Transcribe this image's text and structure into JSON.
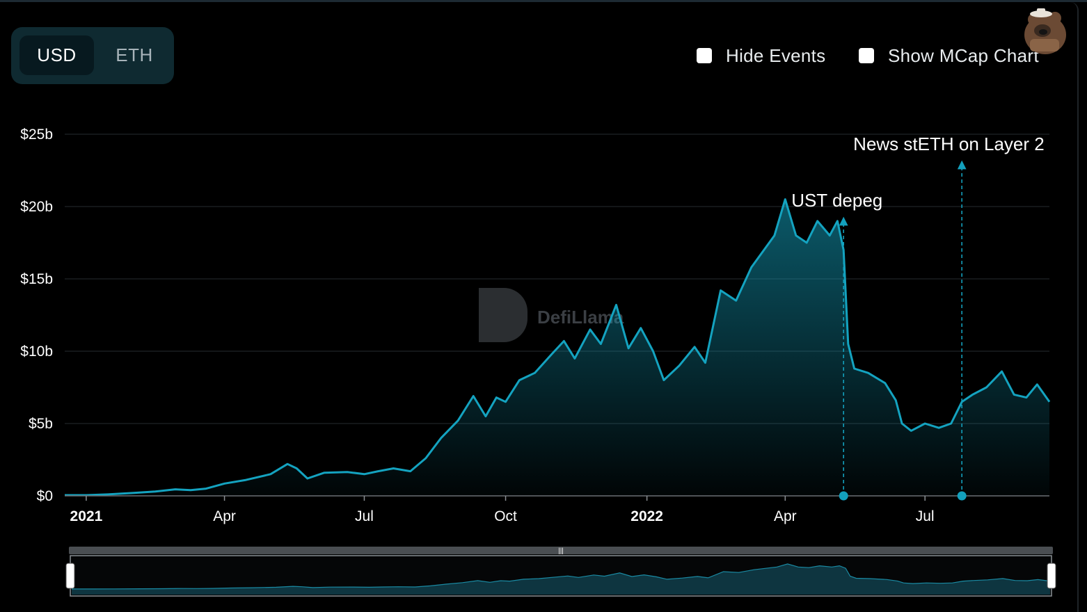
{
  "currency_toggle": {
    "options": [
      "USD",
      "ETH"
    ],
    "selected": "USD"
  },
  "controls": {
    "hide_events_label": "Hide Events",
    "show_mcap_label": "Show MCap Chart"
  },
  "watermark": "DefiLlama",
  "colors": {
    "line": "#14a3c0",
    "grid": "#1f2326",
    "event": "#13a0bd",
    "background": "#000000"
  },
  "events": [
    {
      "label": "UST depeg",
      "date": "2022-05-09"
    },
    {
      "label": "News stETH on Layer 2",
      "date": "2022-07-25"
    }
  ],
  "chart_data": {
    "type": "area",
    "title": "",
    "xlabel": "",
    "ylabel": "",
    "ylim": [
      0,
      25
    ],
    "y_unit": "USD billions",
    "yticks": [
      "$0",
      "$5b",
      "$10b",
      "$15b",
      "$20b",
      "$25b"
    ],
    "xticks": [
      {
        "label": "2021",
        "date": "2021-01-01",
        "bold": true
      },
      {
        "label": "Apr",
        "date": "2021-04-01",
        "bold": false
      },
      {
        "label": "Jul",
        "date": "2021-07-01",
        "bold": false
      },
      {
        "label": "Oct",
        "date": "2021-10-01",
        "bold": false
      },
      {
        "label": "2022",
        "date": "2022-01-01",
        "bold": true
      },
      {
        "label": "Apr",
        "date": "2022-04-01",
        "bold": false
      },
      {
        "label": "Jul",
        "date": "2022-07-01",
        "bold": false
      }
    ],
    "xlim": [
      "2020-12-18",
      "2022-09-20"
    ],
    "grid": true,
    "series": [
      {
        "points": [
          [
            "2020-12-18",
            0.05
          ],
          [
            "2021-01-01",
            0.05
          ],
          [
            "2021-01-15",
            0.1
          ],
          [
            "2021-02-01",
            0.2
          ],
          [
            "2021-02-15",
            0.3
          ],
          [
            "2021-02-28",
            0.45
          ],
          [
            "2021-03-10",
            0.4
          ],
          [
            "2021-03-20",
            0.5
          ],
          [
            "2021-04-01",
            0.85
          ],
          [
            "2021-04-15",
            1.1
          ],
          [
            "2021-05-01",
            1.5
          ],
          [
            "2021-05-12",
            2.2
          ],
          [
            "2021-05-18",
            1.9
          ],
          [
            "2021-05-25",
            1.2
          ],
          [
            "2021-06-05",
            1.6
          ],
          [
            "2021-06-20",
            1.65
          ],
          [
            "2021-07-01",
            1.5
          ],
          [
            "2021-07-10",
            1.7
          ],
          [
            "2021-07-20",
            1.9
          ],
          [
            "2021-07-31",
            1.7
          ],
          [
            "2021-08-10",
            2.6
          ],
          [
            "2021-08-20",
            4.0
          ],
          [
            "2021-08-31",
            5.2
          ],
          [
            "2021-09-10",
            6.9
          ],
          [
            "2021-09-18",
            5.5
          ],
          [
            "2021-09-25",
            6.8
          ],
          [
            "2021-10-01",
            6.5
          ],
          [
            "2021-10-10",
            8.0
          ],
          [
            "2021-10-20",
            8.5
          ],
          [
            "2021-10-31",
            9.8
          ],
          [
            "2021-11-08",
            10.7
          ],
          [
            "2021-11-15",
            9.5
          ],
          [
            "2021-11-25",
            11.5
          ],
          [
            "2021-12-02",
            10.5
          ],
          [
            "2021-12-12",
            13.2
          ],
          [
            "2021-12-20",
            10.2
          ],
          [
            "2021-12-28",
            11.6
          ],
          [
            "2022-01-05",
            10.0
          ],
          [
            "2022-01-12",
            8.0
          ],
          [
            "2022-01-22",
            9.0
          ],
          [
            "2022-02-01",
            10.3
          ],
          [
            "2022-02-08",
            9.2
          ],
          [
            "2022-02-18",
            14.2
          ],
          [
            "2022-02-28",
            13.5
          ],
          [
            "2022-03-10",
            15.8
          ],
          [
            "2022-03-25",
            18.0
          ],
          [
            "2022-04-01",
            20.5
          ],
          [
            "2022-04-08",
            18.0
          ],
          [
            "2022-04-15",
            17.5
          ],
          [
            "2022-04-22",
            19.0
          ],
          [
            "2022-04-30",
            18.0
          ],
          [
            "2022-05-05",
            19.0
          ],
          [
            "2022-05-09",
            17.0
          ],
          [
            "2022-05-12",
            10.5
          ],
          [
            "2022-05-16",
            8.8
          ],
          [
            "2022-05-25",
            8.5
          ],
          [
            "2022-06-05",
            7.8
          ],
          [
            "2022-06-12",
            6.6
          ],
          [
            "2022-06-16",
            5.0
          ],
          [
            "2022-06-22",
            4.5
          ],
          [
            "2022-07-01",
            5.0
          ],
          [
            "2022-07-10",
            4.7
          ],
          [
            "2022-07-18",
            5.0
          ],
          [
            "2022-07-25",
            6.5
          ],
          [
            "2022-08-01",
            7.0
          ],
          [
            "2022-08-10",
            7.5
          ],
          [
            "2022-08-20",
            8.6
          ],
          [
            "2022-08-28",
            7.0
          ],
          [
            "2022-09-05",
            6.8
          ],
          [
            "2022-09-12",
            7.7
          ],
          [
            "2022-09-20",
            6.5
          ]
        ]
      }
    ]
  }
}
